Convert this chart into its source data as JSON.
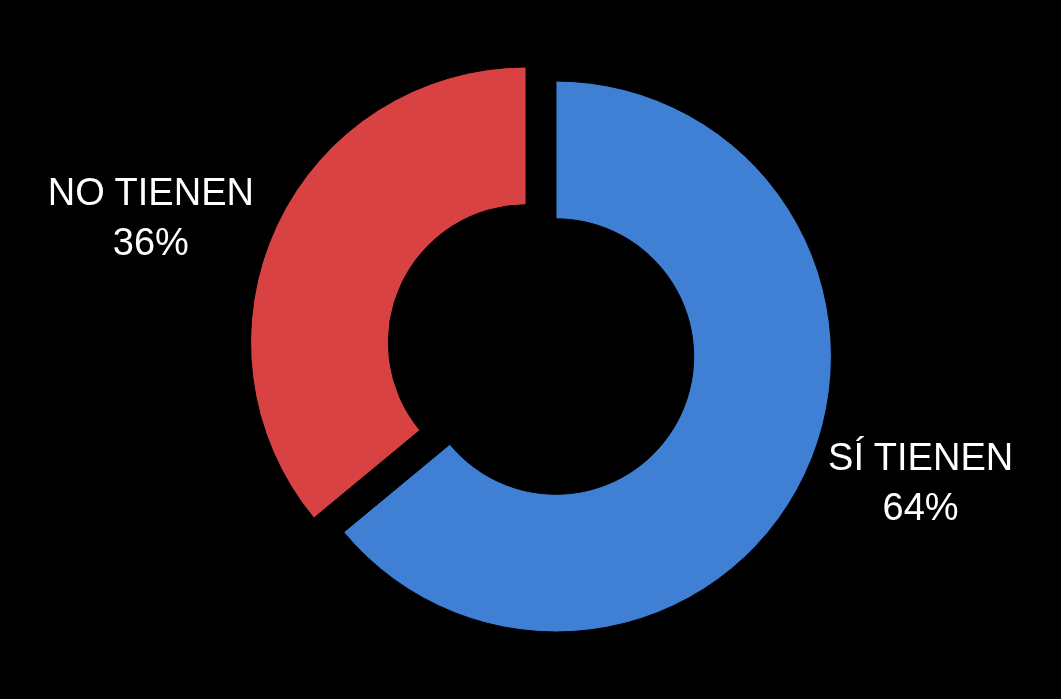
{
  "chart_data": {
    "type": "donut",
    "categories": [
      "SÍ TIENEN",
      "NO TIENEN"
    ],
    "values": [
      64,
      36
    ],
    "colors": [
      "#3f7fd4",
      "#d84242"
    ],
    "value_labels": [
      "64%",
      "36%"
    ],
    "legend": false
  }
}
